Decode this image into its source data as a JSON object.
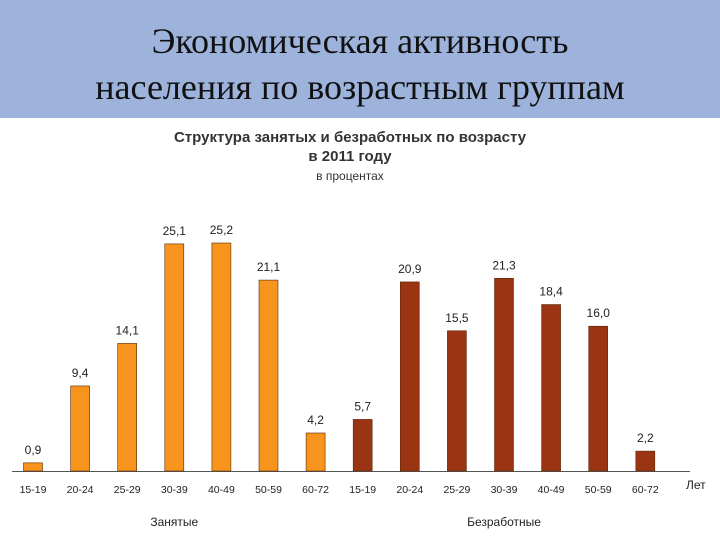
{
  "slide": {
    "title_line1": "Экономическая активность",
    "title_line2": "населения по возрастным группам",
    "banner_color": "#9db3dc"
  },
  "chart_data": {
    "type": "bar",
    "title": "Структура занятых и безработных по возрасту в 2011 году",
    "title_line1": "Структура занятых и безработных по возрасту",
    "title_line2": "в 2011 году",
    "subtitle": "в процентах",
    "xunit": "Лет",
    "groups": [
      {
        "name": "Занятые",
        "color": "#f7941d",
        "categories": [
          "15-19",
          "20-24",
          "25-29",
          "30-39",
          "40-49",
          "50-59",
          "60-72"
        ],
        "values": [
          0.9,
          9.4,
          14.1,
          25.1,
          25.2,
          21.1,
          4.2
        ],
        "labels": [
          "0,9",
          "9,4",
          "14,1",
          "25,1",
          "25,2",
          "21,1",
          "4,2"
        ]
      },
      {
        "name": "Безработные",
        "color": "#9a3412",
        "categories": [
          "15-19",
          "20-24",
          "25-29",
          "30-39",
          "40-49",
          "50-59",
          "60-72"
        ],
        "values": [
          5.7,
          20.9,
          15.5,
          21.3,
          18.4,
          16.0,
          2.2
        ],
        "labels": [
          "5,7",
          "20,9",
          "15,5",
          "21,3",
          "18,4",
          "16,0",
          "2,2"
        ]
      }
    ],
    "ylim": [
      0,
      25.2
    ],
    "grid": false,
    "legend": "none"
  }
}
